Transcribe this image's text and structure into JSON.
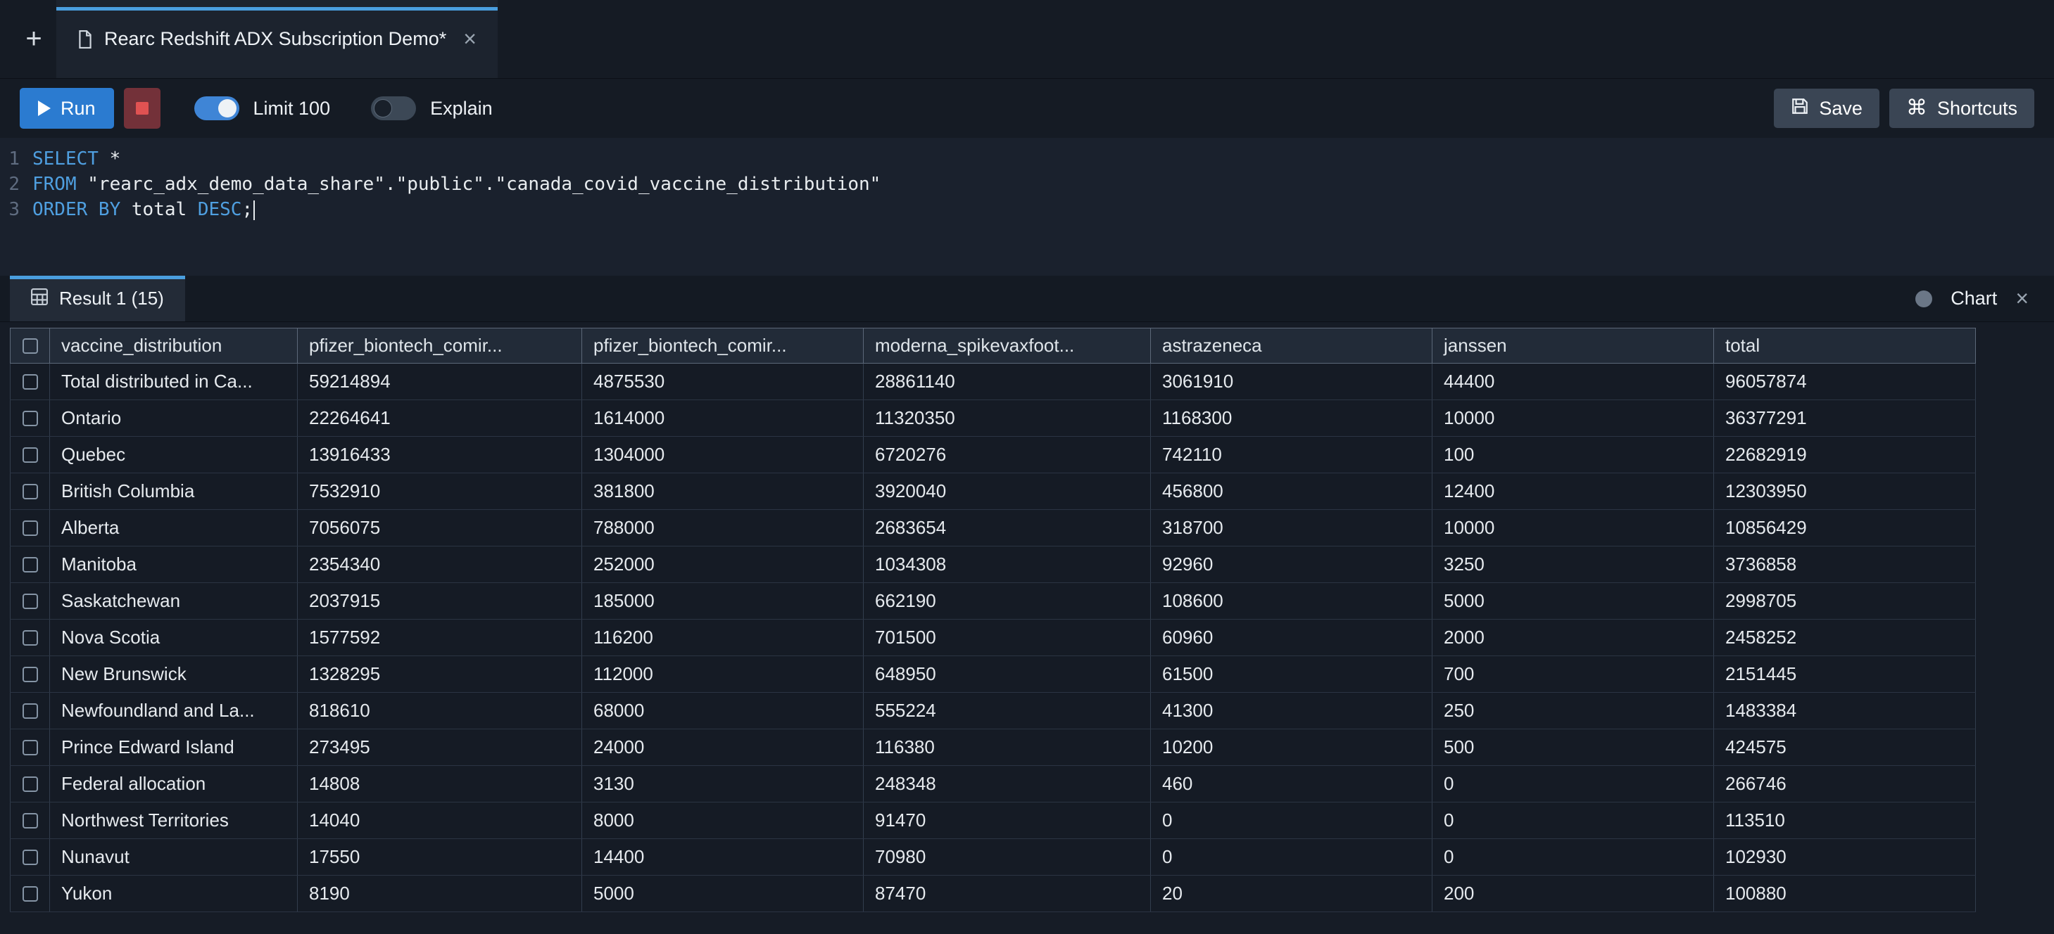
{
  "colors": {
    "accent": "#4a9ede",
    "run_button": "#2b7bd0",
    "stop_icon": "#e05252"
  },
  "tab_bar": {
    "new_tab_label": "+",
    "tab_title": "Rearc Redshift ADX Subscription Demo*",
    "tab_close": "×"
  },
  "toolbar": {
    "run_label": "Run",
    "limit_label": "Limit 100",
    "explain_label": "Explain",
    "save_label": "Save",
    "shortcuts_label": "Shortcuts",
    "shortcuts_glyph": "⌘",
    "limit_toggle_on": true,
    "explain_toggle_on": false
  },
  "editor": {
    "lines": [
      {
        "num": "1",
        "tokens": [
          {
            "t": "SELECT",
            "c": "kw"
          },
          {
            "t": " *",
            "c": "plain"
          }
        ]
      },
      {
        "num": "2",
        "tokens": [
          {
            "t": "FROM",
            "c": "kw"
          },
          {
            "t": " \"rearc_adx_demo_data_share\".\"public\".\"canada_covid_vaccine_distribution\"",
            "c": "plain"
          }
        ]
      },
      {
        "num": "3",
        "tokens": [
          {
            "t": "ORDER BY",
            "c": "kw"
          },
          {
            "t": " total ",
            "c": "plain"
          },
          {
            "t": "DESC",
            "c": "kw"
          },
          {
            "t": ";",
            "c": "plain"
          }
        ],
        "caret": true
      }
    ]
  },
  "results": {
    "tab_label": "Result 1 (15)",
    "chart_label": "Chart",
    "close": "×"
  },
  "table": {
    "columns": [
      "vaccine_distribution",
      "pfizer_biontech_comir...",
      "pfizer_biontech_comir...",
      "moderna_spikevaxfoot...",
      "astrazeneca",
      "janssen",
      "total"
    ],
    "rows": [
      [
        "Total distributed in Ca...",
        "59214894",
        "4875530",
        "28861140",
        "3061910",
        "44400",
        "96057874"
      ],
      [
        "Ontario",
        "22264641",
        "1614000",
        "11320350",
        "1168300",
        "10000",
        "36377291"
      ],
      [
        "Quebec",
        "13916433",
        "1304000",
        "6720276",
        "742110",
        "100",
        "22682919"
      ],
      [
        "British Columbia",
        "7532910",
        "381800",
        "3920040",
        "456800",
        "12400",
        "12303950"
      ],
      [
        "Alberta",
        "7056075",
        "788000",
        "2683654",
        "318700",
        "10000",
        "10856429"
      ],
      [
        "Manitoba",
        "2354340",
        "252000",
        "1034308",
        "92960",
        "3250",
        "3736858"
      ],
      [
        "Saskatchewan",
        "2037915",
        "185000",
        "662190",
        "108600",
        "5000",
        "2998705"
      ],
      [
        "Nova Scotia",
        "1577592",
        "116200",
        "701500",
        "60960",
        "2000",
        "2458252"
      ],
      [
        "New Brunswick",
        "1328295",
        "112000",
        "648950",
        "61500",
        "700",
        "2151445"
      ],
      [
        "Newfoundland and La...",
        "818610",
        "68000",
        "555224",
        "41300",
        "250",
        "1483384"
      ],
      [
        "Prince Edward Island",
        "273495",
        "24000",
        "116380",
        "10200",
        "500",
        "424575"
      ],
      [
        "Federal allocation",
        "14808",
        "3130",
        "248348",
        "460",
        "0",
        "266746"
      ],
      [
        "Northwest Territories",
        "14040",
        "8000",
        "91470",
        "0",
        "0",
        "113510"
      ],
      [
        "Nunavut",
        "17550",
        "14400",
        "70980",
        "0",
        "0",
        "102930"
      ],
      [
        "Yukon",
        "8190",
        "5000",
        "87470",
        "20",
        "200",
        "100880"
      ]
    ]
  }
}
